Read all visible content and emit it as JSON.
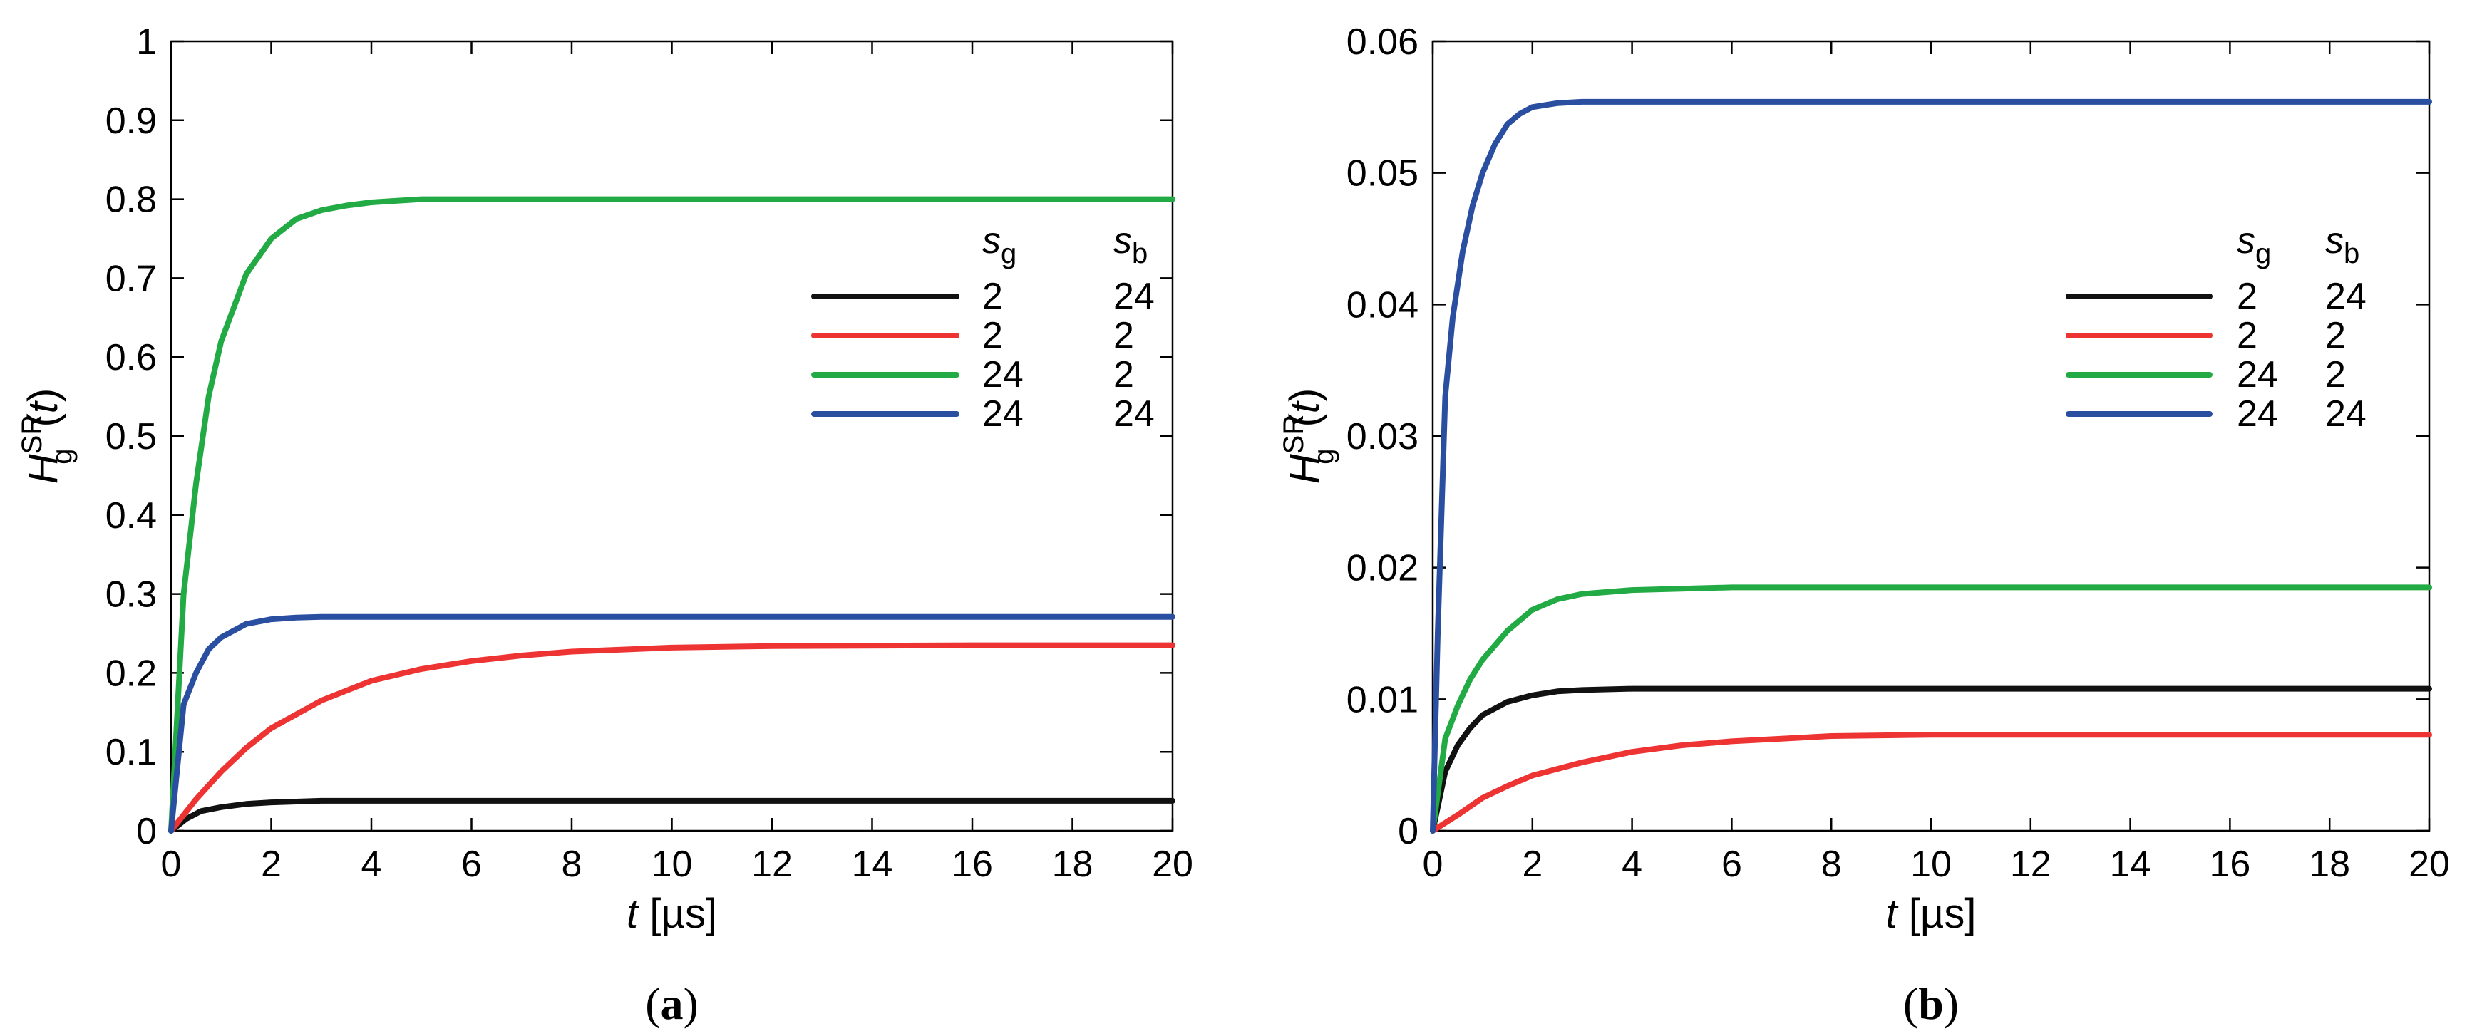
{
  "chart_data": [
    {
      "type": "line",
      "panel_label": "(a)",
      "panel_letter": "a",
      "xlabel": {
        "var": "t",
        "unit": "[µs]"
      },
      "ylabel": {
        "var": "H",
        "sub": "g",
        "sup": "SR",
        "arg": "(t)"
      },
      "xlim": [
        0,
        20
      ],
      "ylim": [
        0,
        1
      ],
      "xticks": [
        "0",
        "2",
        "4",
        "6",
        "8",
        "10",
        "12",
        "14",
        "16",
        "18",
        "20"
      ],
      "yticks": [
        "0",
        "0.1",
        "0.2",
        "0.3",
        "0.4",
        "0.5",
        "0.6",
        "0.7",
        "0.8",
        "0.9",
        "1"
      ],
      "grid": false,
      "legend": {
        "placement": "right",
        "header_sg": "s",
        "header_sg_sub": "g",
        "header_sb": "s",
        "header_sb_sub": "b"
      },
      "series": [
        {
          "color": "#111111",
          "sg": "2",
          "sb": "24",
          "x": [
            0,
            0.3,
            0.6,
            1,
            1.5,
            2,
            2.5,
            3,
            5,
            10,
            20
          ],
          "y": [
            0,
            0.015,
            0.025,
            0.03,
            0.034,
            0.036,
            0.037,
            0.038,
            0.038,
            0.038,
            0.038
          ]
        },
        {
          "color": "#ee3333",
          "sg": "2",
          "sb": "2",
          "x": [
            0,
            0.5,
            1,
            1.5,
            2,
            3,
            4,
            5,
            6,
            7,
            8,
            10,
            12,
            16,
            20
          ],
          "y": [
            0,
            0.04,
            0.075,
            0.105,
            0.13,
            0.165,
            0.19,
            0.205,
            0.215,
            0.222,
            0.227,
            0.232,
            0.234,
            0.235,
            0.235
          ]
        },
        {
          "color": "#22aa44",
          "sg": "24",
          "sb": "2",
          "x": [
            0,
            0.25,
            0.5,
            0.75,
            1,
            1.5,
            2,
            2.5,
            3,
            3.5,
            4,
            5,
            10,
            20
          ],
          "y": [
            0,
            0.3,
            0.44,
            0.55,
            0.62,
            0.705,
            0.75,
            0.775,
            0.786,
            0.792,
            0.796,
            0.8,
            0.8,
            0.8
          ]
        },
        {
          "color": "#2a4fa0",
          "sg": "24",
          "sb": "24",
          "x": [
            0,
            0.25,
            0.5,
            0.75,
            1,
            1.5,
            2,
            2.5,
            3,
            5,
            20
          ],
          "y": [
            0,
            0.16,
            0.2,
            0.23,
            0.245,
            0.262,
            0.268,
            0.27,
            0.271,
            0.271,
            0.271
          ]
        }
      ]
    },
    {
      "type": "line",
      "panel_label": "(b)",
      "panel_letter": "b",
      "xlabel": {
        "var": "t",
        "unit": "[µs]"
      },
      "ylabel": {
        "var": "H",
        "sub": "g",
        "sup": "SR",
        "arg": "(t)"
      },
      "xlim": [
        0,
        20
      ],
      "ylim": [
        0,
        0.06
      ],
      "xticks": [
        "0",
        "2",
        "4",
        "6",
        "8",
        "10",
        "12",
        "14",
        "16",
        "18",
        "20"
      ],
      "yticks": [
        "0",
        "0.01",
        "0.02",
        "0.03",
        "0.04",
        "0.05",
        "0.06"
      ],
      "grid": false,
      "legend": {
        "placement": "right",
        "header_sg": "s",
        "header_sg_sub": "g",
        "header_sb": "s",
        "header_sb_sub": "b"
      },
      "series": [
        {
          "color": "#111111",
          "sg": "2",
          "sb": "24",
          "x": [
            0,
            0.25,
            0.5,
            0.75,
            1,
            1.5,
            2,
            2.5,
            3,
            4,
            10,
            20
          ],
          "y": [
            0,
            0.0045,
            0.0065,
            0.0078,
            0.0088,
            0.0098,
            0.0103,
            0.0106,
            0.0107,
            0.0108,
            0.0108,
            0.0108
          ]
        },
        {
          "color": "#ee3333",
          "sg": "2",
          "sb": "2",
          "x": [
            0,
            0.5,
            1,
            1.5,
            2,
            3,
            4,
            5,
            6,
            7,
            8,
            10,
            12,
            20
          ],
          "y": [
            0,
            0.0012,
            0.0025,
            0.0034,
            0.0042,
            0.0052,
            0.006,
            0.0065,
            0.0068,
            0.007,
            0.0072,
            0.0073,
            0.0073,
            0.0073
          ]
        },
        {
          "color": "#22aa44",
          "sg": "24",
          "sb": "2",
          "x": [
            0,
            0.25,
            0.5,
            0.75,
            1,
            1.5,
            2,
            2.5,
            3,
            4,
            6,
            20
          ],
          "y": [
            0,
            0.007,
            0.0095,
            0.0115,
            0.013,
            0.0152,
            0.0168,
            0.0176,
            0.018,
            0.0183,
            0.0185,
            0.0185
          ]
        },
        {
          "color": "#2a4fa0",
          "sg": "24",
          "sb": "24",
          "x": [
            0,
            0.1,
            0.25,
            0.4,
            0.6,
            0.8,
            1,
            1.25,
            1.5,
            1.75,
            2,
            2.5,
            3,
            20
          ],
          "y": [
            0,
            0.015,
            0.033,
            0.039,
            0.044,
            0.0475,
            0.05,
            0.0522,
            0.0537,
            0.0545,
            0.055,
            0.0553,
            0.0554,
            0.0554
          ]
        }
      ]
    }
  ]
}
